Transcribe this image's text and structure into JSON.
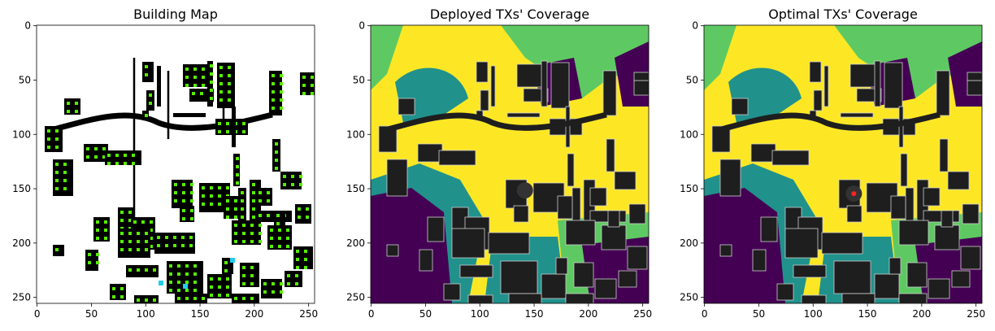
{
  "chart_data": [
    {
      "type": "heatmap",
      "title": "Building Map",
      "xlim": [
        0,
        256
      ],
      "ylim": [
        256,
        0
      ],
      "xticks": [
        0,
        50,
        100,
        150,
        200,
        250
      ],
      "yticks": [
        0,
        50,
        100,
        150,
        200,
        250
      ],
      "colors": {
        "background": "#ffffff",
        "building": "#000000",
        "marker": "#55ee00",
        "tx_marker": "#22ccee"
      }
    },
    {
      "type": "heatmap",
      "title": "Deployed TXs' Coverage",
      "xlim": [
        0,
        256
      ],
      "ylim": [
        256,
        0
      ],
      "xticks": [
        0,
        50,
        100,
        150,
        200,
        250
      ],
      "yticks": [
        0,
        50,
        100,
        150,
        200,
        250
      ],
      "colormap": [
        "#440154",
        "#21918c",
        "#5ec962",
        "#fde725"
      ],
      "transmitter": {
        "x": 142,
        "y": 152
      },
      "colors": {
        "building": "#1e1e1e",
        "tx": "#333333"
      }
    },
    {
      "type": "heatmap",
      "title": "Optimal TXs' Coverage",
      "xlim": [
        0,
        256
      ],
      "ylim": [
        256,
        0
      ],
      "xticks": [
        0,
        50,
        100,
        150,
        200,
        250
      ],
      "yticks": [
        0,
        50,
        100,
        150,
        200,
        250
      ],
      "colormap": [
        "#440154",
        "#21918c",
        "#5ec962",
        "#fde725"
      ],
      "transmitter": {
        "x": 138,
        "y": 155
      },
      "colors": {
        "building": "#1e1e1e",
        "tx": "#ff2020"
      }
    }
  ]
}
